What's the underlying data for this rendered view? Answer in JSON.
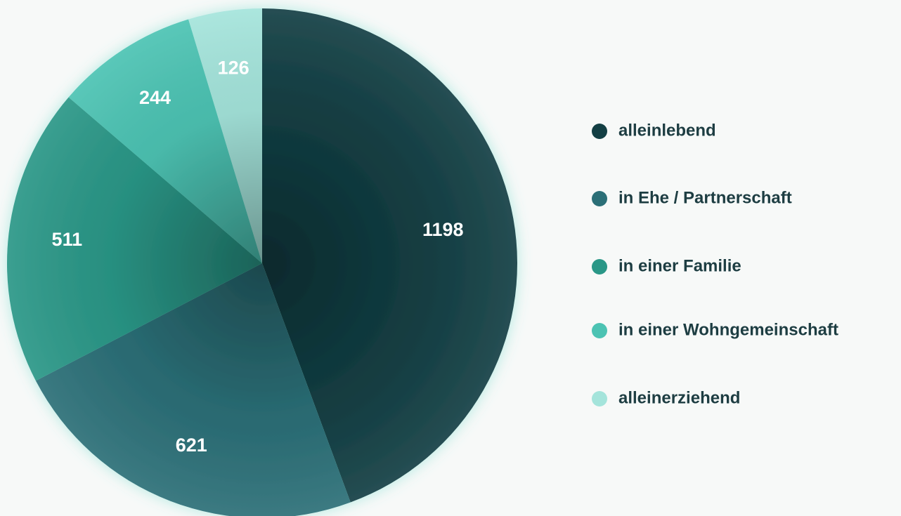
{
  "chart_data": {
    "type": "pie",
    "categories": [
      "alleinlebend",
      "in Ehe / Partnerschaft",
      "in einer Familie",
      "in einer Wohngemeinschaft",
      "alleinerziehend"
    ],
    "values": [
      1198,
      621,
      511,
      244,
      126
    ],
    "colors": [
      "#133f44",
      "#2b6f77",
      "#2a9787",
      "#4cc3b3",
      "#a4e4db"
    ]
  }
}
